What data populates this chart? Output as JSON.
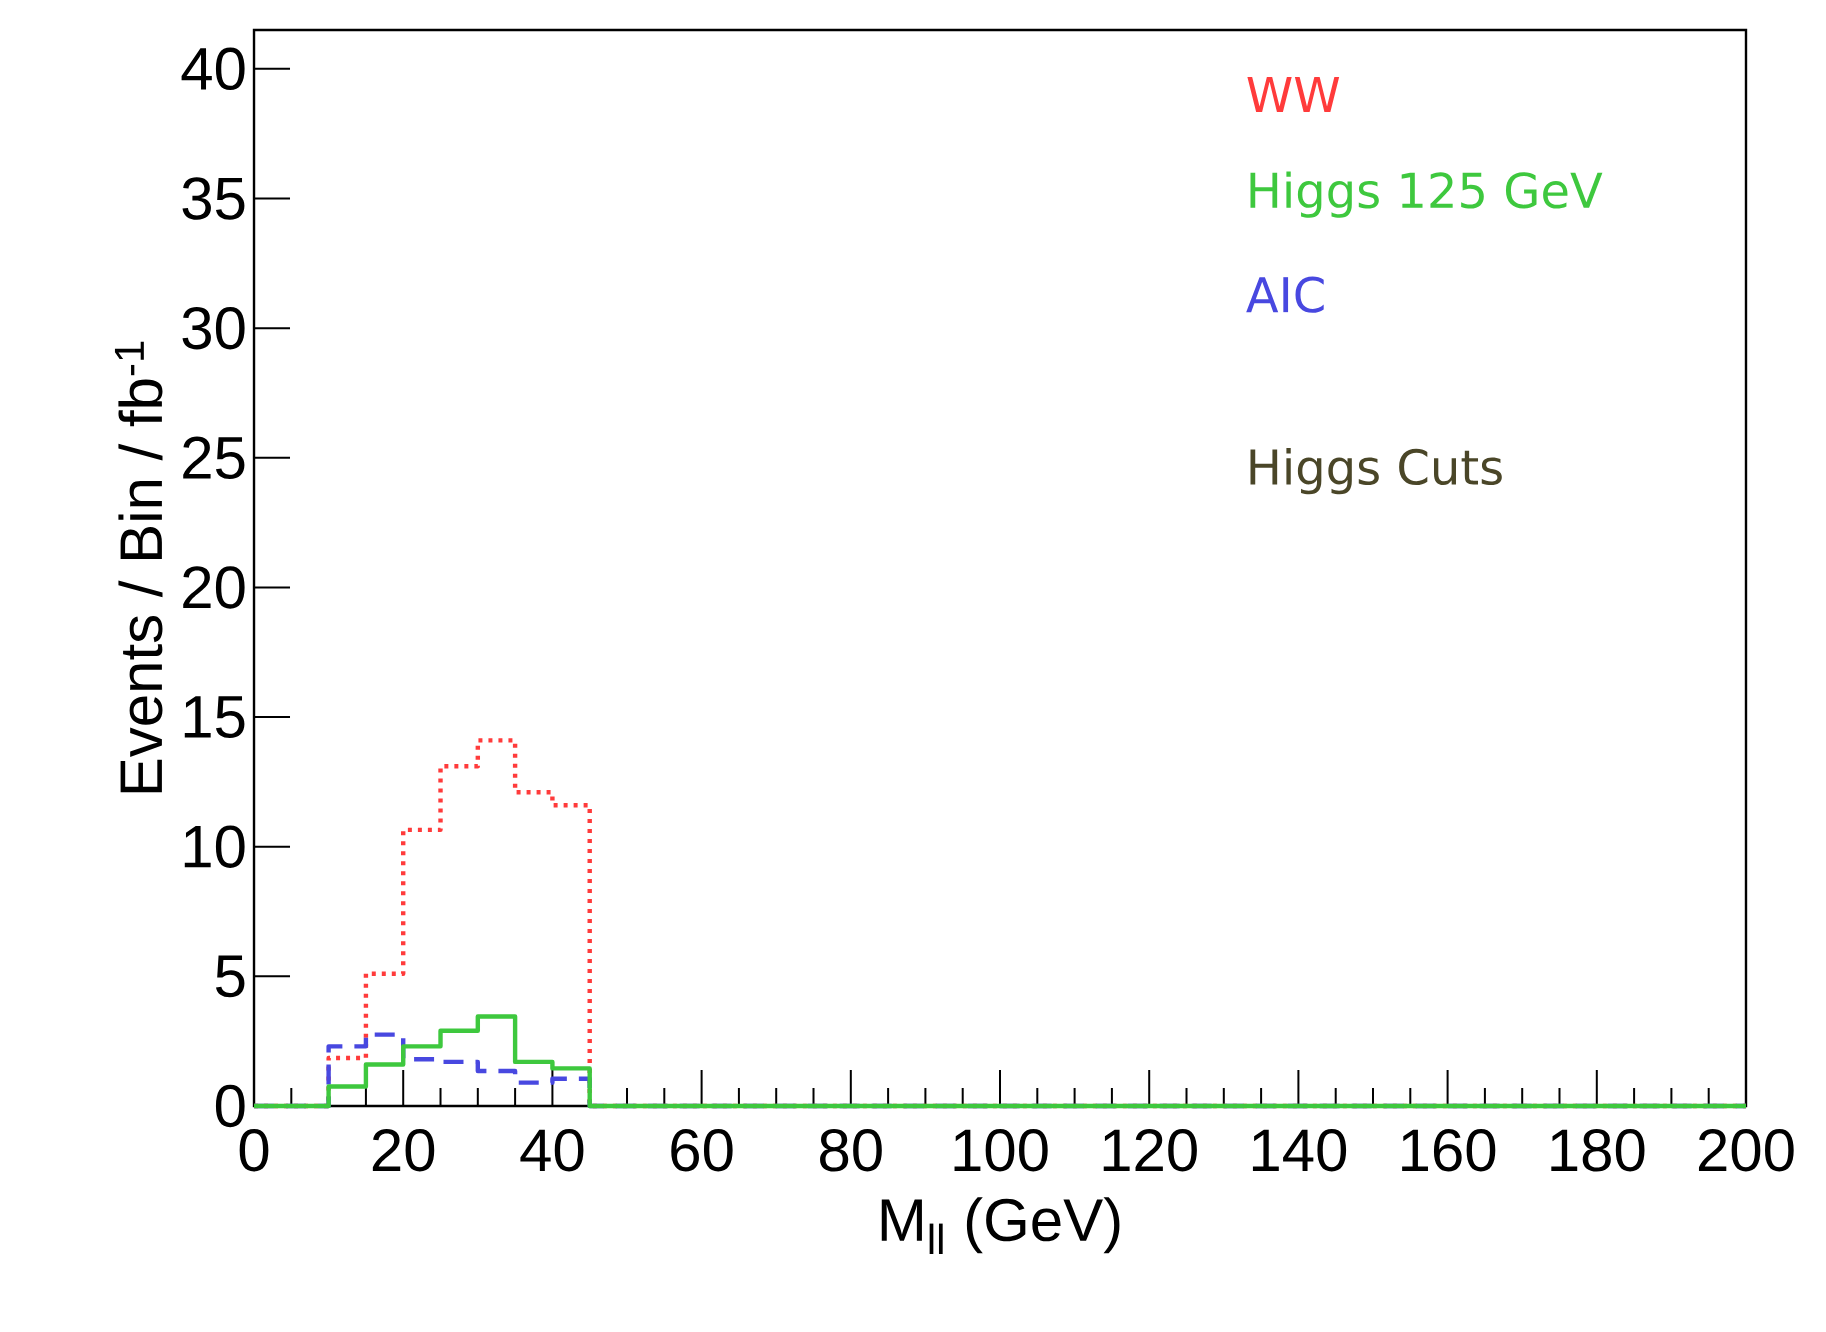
{
  "chart_data": {
    "type": "histogram",
    "xlabel": "M$_{ll}$   (GeV)",
    "ylabel": "Events / Bin / fb$^{-1}$",
    "bins": [
      0,
      5,
      10,
      15,
      20,
      25,
      30,
      35,
      40,
      45,
      50,
      55,
      60,
      65,
      70,
      75,
      80,
      85,
      90,
      95,
      100,
      105,
      110,
      115,
      120,
      125,
      130,
      135,
      140,
      145,
      150,
      155,
      160,
      165,
      170,
      175,
      180,
      185,
      190,
      195,
      200
    ],
    "series": [
      {
        "name": "WW",
        "color": "#ff3b3b",
        "line_style": "dotted",
        "values": [
          0,
          0,
          1.85,
          5.1,
          10.65,
          13.1,
          14.1,
          12.1,
          11.6,
          0,
          0,
          0,
          0,
          0,
          0,
          0,
          0,
          0,
          0,
          0,
          0,
          0,
          0,
          0,
          0,
          0,
          0,
          0,
          0,
          0,
          0,
          0,
          0,
          0,
          0,
          0,
          0,
          0,
          0,
          0
        ]
      },
      {
        "name": "Higgs 125 GeV",
        "color": "#3ec83e",
        "line_style": "solid",
        "values": [
          0,
          0,
          0.75,
          1.6,
          2.3,
          2.9,
          3.45,
          1.7,
          1.45,
          0,
          0,
          0,
          0,
          0,
          0,
          0,
          0,
          0,
          0,
          0,
          0,
          0,
          0,
          0,
          0,
          0,
          0,
          0,
          0,
          0,
          0,
          0,
          0,
          0,
          0,
          0,
          0,
          0,
          0,
          0
        ]
      },
      {
        "name": "AIC",
        "color": "#4848e0",
        "line_style": "dashed",
        "values": [
          0,
          0,
          2.3,
          2.75,
          1.8,
          1.7,
          1.35,
          0.9,
          1.05,
          0,
          0,
          0,
          0,
          0,
          0,
          0,
          0,
          0,
          0,
          0,
          0,
          0,
          0,
          0,
          0,
          0,
          0,
          0,
          0,
          0,
          0,
          0,
          0,
          0,
          0,
          0,
          0,
          0,
          0,
          0
        ]
      }
    ],
    "annotations": [
      "Higgs Cuts"
    ],
    "xlim": [
      0,
      200
    ],
    "ylim": [
      0,
      41.5
    ],
    "xticks": [
      0,
      20,
      40,
      60,
      80,
      100,
      120,
      140,
      160,
      180,
      200
    ],
    "yticks": [
      0,
      5,
      10,
      15,
      20,
      25,
      30,
      35,
      40
    ],
    "legend": "top right",
    "grid": false
  }
}
